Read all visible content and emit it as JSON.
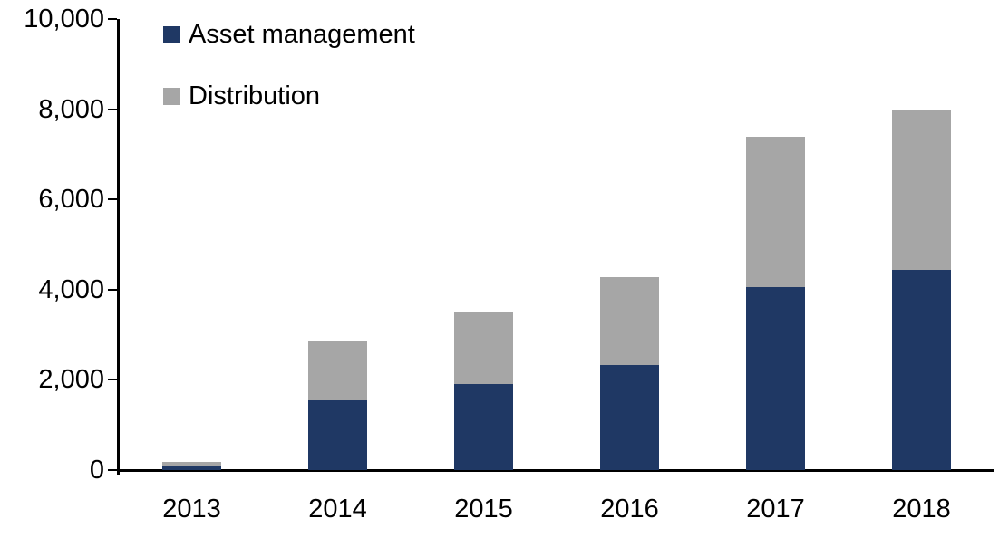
{
  "chart_data": {
    "type": "bar",
    "stacked": true,
    "title": "",
    "xlabel": "",
    "ylabel": "",
    "categories": [
      "2013",
      "2014",
      "2015",
      "2016",
      "2017",
      "2018"
    ],
    "series": [
      {
        "name": "Asset management",
        "color": "#1F3864",
        "values": [
          100,
          1550,
          1900,
          2330,
          4050,
          4430
        ]
      },
      {
        "name": "Distribution",
        "color": "#A6A6A6",
        "values": [
          80,
          1330,
          1600,
          1950,
          3350,
          3570
        ]
      }
    ],
    "totals": [
      180,
      2880,
      3500,
      4280,
      7400,
      8000
    ],
    "ylim": [
      0,
      10000
    ],
    "ytick_interval": 2000,
    "ytick_labels": [
      "0",
      "2,000",
      "4,000",
      "6,000",
      "8,000",
      "10,000"
    ],
    "grid": false,
    "legend_position": "inside-top-left",
    "legend": [
      {
        "label": "Asset management",
        "color": "#1F3864"
      },
      {
        "label": "Distribution",
        "color": "#A6A6A6"
      }
    ],
    "axis_color": "#000000",
    "background_color": "#FFFFFF"
  }
}
